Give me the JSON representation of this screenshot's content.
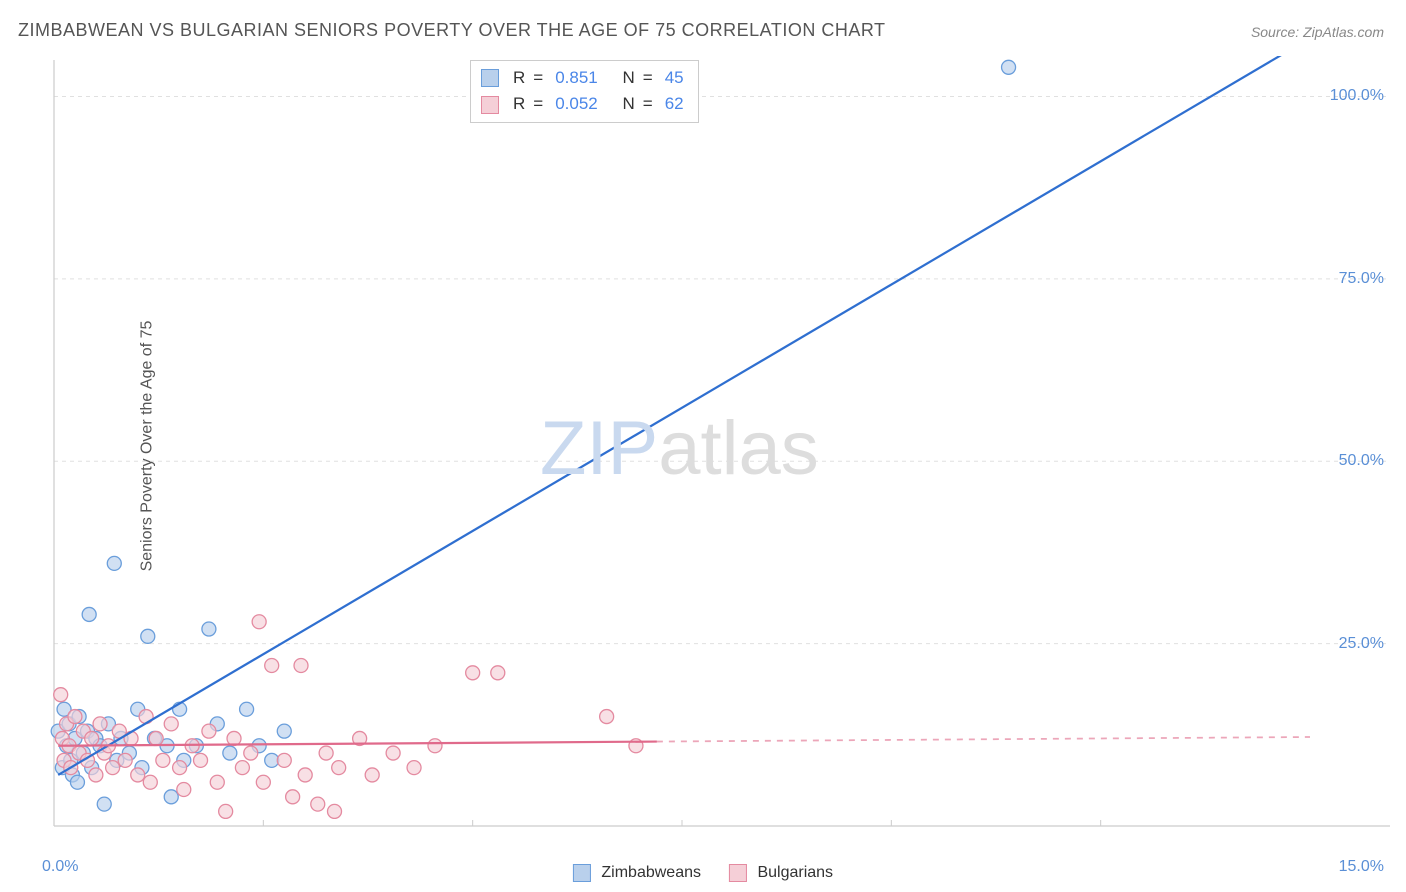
{
  "title": "ZIMBABWEAN VS BULGARIAN SENIORS POVERTY OVER THE AGE OF 75 CORRELATION CHART",
  "source": "Source: ZipAtlas.com",
  "ylabel": "Seniors Poverty Over the Age of 75",
  "watermark": {
    "zip": "ZIP",
    "atlas": "atlas"
  },
  "chart": {
    "type": "scatter-with-regression",
    "background": "#ffffff",
    "grid_color": "#e0e0e0",
    "axis_color": "#cccccc",
    "tick_color": "#5a8fd6",
    "xlim": [
      0,
      15
    ],
    "ylim": [
      0,
      105
    ],
    "y_ticks": [
      25,
      50,
      75,
      100
    ],
    "y_tick_labels": [
      "25.0%",
      "50.0%",
      "75.0%",
      "100.0%"
    ],
    "x_tick_left": "0.0%",
    "x_tick_right": "15.0%",
    "x_minor_step": 2.5,
    "marker_radius": 7,
    "series": [
      {
        "name": "Zimbabweans",
        "R": "0.851",
        "N": "45",
        "fill": "#b9d0ec",
        "stroke": "#6a9edb",
        "line_color": "#2f6fd0",
        "line_width": 2.2,
        "reg_start": [
          0.05,
          7
        ],
        "reg_end": [
          15,
          108
        ],
        "reg_solid_until": 15,
        "points": [
          [
            0.05,
            13
          ],
          [
            0.1,
            8
          ],
          [
            0.12,
            16
          ],
          [
            0.15,
            11
          ],
          [
            0.18,
            14
          ],
          [
            0.2,
            9
          ],
          [
            0.22,
            7
          ],
          [
            0.25,
            12
          ],
          [
            0.28,
            6
          ],
          [
            0.3,
            15
          ],
          [
            0.35,
            10
          ],
          [
            0.4,
            13
          ],
          [
            0.42,
            29
          ],
          [
            0.45,
            8
          ],
          [
            0.5,
            12
          ],
          [
            0.55,
            11
          ],
          [
            0.6,
            3
          ],
          [
            0.65,
            14
          ],
          [
            0.72,
            36
          ],
          [
            0.75,
            9
          ],
          [
            0.8,
            12
          ],
          [
            0.9,
            10
          ],
          [
            1.0,
            16
          ],
          [
            1.05,
            8
          ],
          [
            1.12,
            26
          ],
          [
            1.2,
            12
          ],
          [
            1.35,
            11
          ],
          [
            1.4,
            4
          ],
          [
            1.5,
            16
          ],
          [
            1.55,
            9
          ],
          [
            1.7,
            11
          ],
          [
            1.85,
            27
          ],
          [
            1.95,
            14
          ],
          [
            2.1,
            10
          ],
          [
            2.3,
            16
          ],
          [
            2.45,
            11
          ],
          [
            2.6,
            9
          ],
          [
            2.75,
            13
          ],
          [
            11.4,
            104
          ]
        ]
      },
      {
        "name": "Bulgarians",
        "R": "0.052",
        "N": "62",
        "fill": "#f5cfd7",
        "stroke": "#e48aa0",
        "line_color": "#e06a8b",
        "line_width": 2.2,
        "reg_start": [
          0.05,
          11
        ],
        "reg_end": [
          15,
          12.2
        ],
        "reg_solid_until": 7.2,
        "points": [
          [
            0.08,
            18
          ],
          [
            0.1,
            12
          ],
          [
            0.12,
            9
          ],
          [
            0.15,
            14
          ],
          [
            0.18,
            11
          ],
          [
            0.2,
            8
          ],
          [
            0.25,
            15
          ],
          [
            0.3,
            10
          ],
          [
            0.35,
            13
          ],
          [
            0.4,
            9
          ],
          [
            0.45,
            12
          ],
          [
            0.5,
            7
          ],
          [
            0.55,
            14
          ],
          [
            0.6,
            10
          ],
          [
            0.65,
            11
          ],
          [
            0.7,
            8
          ],
          [
            0.78,
            13
          ],
          [
            0.85,
            9
          ],
          [
            0.92,
            12
          ],
          [
            1.0,
            7
          ],
          [
            1.1,
            15
          ],
          [
            1.15,
            6
          ],
          [
            1.22,
            12
          ],
          [
            1.3,
            9
          ],
          [
            1.4,
            14
          ],
          [
            1.5,
            8
          ],
          [
            1.55,
            5
          ],
          [
            1.65,
            11
          ],
          [
            1.75,
            9
          ],
          [
            1.85,
            13
          ],
          [
            1.95,
            6
          ],
          [
            2.05,
            2
          ],
          [
            2.15,
            12
          ],
          [
            2.25,
            8
          ],
          [
            2.35,
            10
          ],
          [
            2.45,
            28
          ],
          [
            2.5,
            6
          ],
          [
            2.6,
            22
          ],
          [
            2.75,
            9
          ],
          [
            2.85,
            4
          ],
          [
            2.95,
            22
          ],
          [
            3.0,
            7
          ],
          [
            3.15,
            3
          ],
          [
            3.25,
            10
          ],
          [
            3.35,
            2
          ],
          [
            3.4,
            8
          ],
          [
            3.65,
            12
          ],
          [
            3.8,
            7
          ],
          [
            4.05,
            10
          ],
          [
            4.3,
            8
          ],
          [
            4.55,
            11
          ],
          [
            5.0,
            21
          ],
          [
            5.3,
            21
          ],
          [
            6.6,
            15
          ],
          [
            6.95,
            11
          ]
        ]
      }
    ]
  },
  "legend": {
    "label_a": "Zimbabweans",
    "label_b": "Bulgarians"
  },
  "stat_legend": {
    "R_label": "R",
    "N_label": "N",
    "eq": "="
  }
}
